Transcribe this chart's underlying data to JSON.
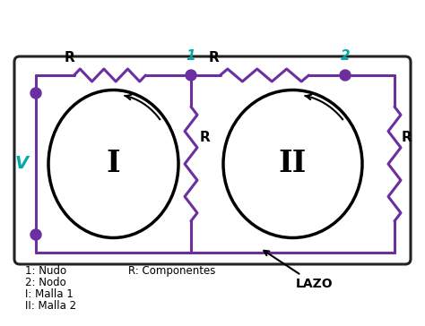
{
  "bg_color": "#ffffff",
  "wire_color": "#6b2fa0",
  "node_color": "#6b2fa0",
  "node_label_color": "#00aaaa",
  "V_color": "#00aaaa",
  "loop_color": "#000000",
  "node1_label": "1",
  "node2_label": "2",
  "V_label": "V",
  "loop1_label": "I",
  "loop2_label": "II",
  "legend_items": [
    "1: Nudo",
    "2: Nodo",
    "I: Malla 1",
    "II: Malla 2"
  ],
  "legend_R": "R: Componentes",
  "lazo_label": "LAZO",
  "fig_w": 4.74,
  "fig_h": 3.64,
  "dpi": 100
}
